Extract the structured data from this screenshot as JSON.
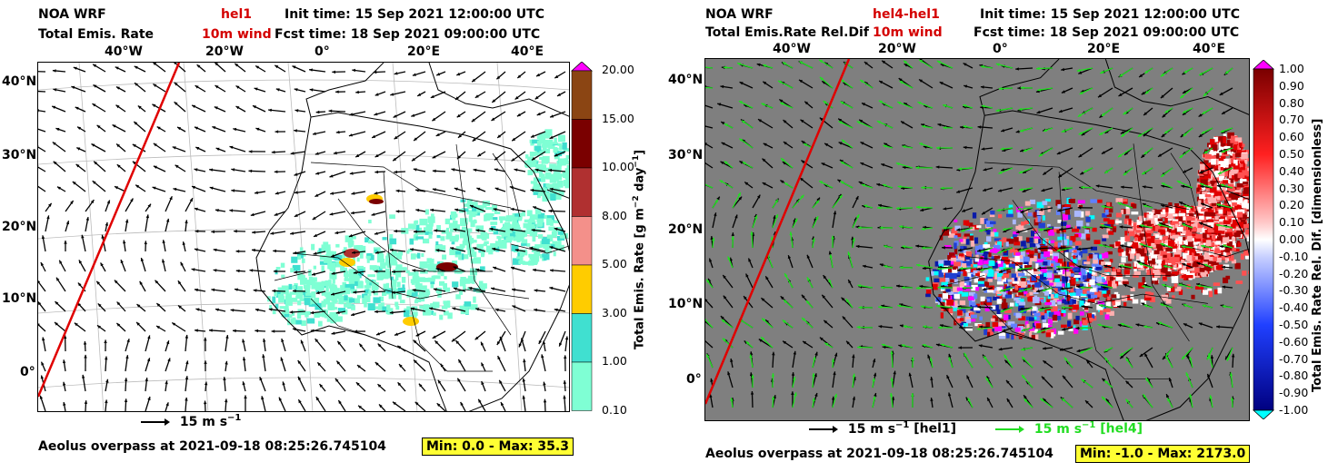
{
  "colors": {
    "overpass": "#e00000",
    "wind_left": "#000000",
    "wind_right": "#22dd22",
    "ocean_right": "#7f7f7f",
    "badge": "#ffff33"
  },
  "left": {
    "model": "NOA WRF",
    "variable": "Total Emis. Rate",
    "experiment": "hel1",
    "field": "10m wind",
    "init_time": "Init time: 15 Sep 2021 12:00:00 UTC",
    "fcst_time": "Fcst time: 18 Sep 2021 09:00:00 UTC",
    "lon_ticks": [
      "40°W",
      "20°W",
      "0°",
      "20°E",
      "40°E"
    ],
    "lat_ticks": [
      "40°N",
      "30°N",
      "20°N",
      "10°N",
      "0°"
    ],
    "colorbar": {
      "labels": [
        "20.00",
        "15.00",
        "10.00",
        "8.00",
        "5.00",
        "3.00",
        "1.00",
        "0.10"
      ],
      "colors": [
        "#8b4513",
        "#7a0000",
        "#b03030",
        "#f4908a",
        "#ffcc00",
        "#40e0d0",
        "#7fffd4"
      ],
      "title": "Total Emis. Rate  [g m",
      "title_sup1": "−2",
      "title_mid": " day",
      "title_sup2": "−1",
      "title_end": "]"
    },
    "wind_legend": "15 m s",
    "wind_legend_sup": "−1",
    "overpass": "Aeolus overpass at 2021-09-18 08:25:26.745104",
    "minmax": "Min: 0.0 - Max: 35.3"
  },
  "right": {
    "model": "NOA WRF",
    "variable": "Total Emis.Rate Rel.Dif",
    "experiment": "hel4-hel1",
    "field": "10m wind",
    "init_time": "Init time: 15 Sep 2021 12:00:00 UTC",
    "fcst_time": "Fcst time: 18 Sep 2021 09:00:00 UTC",
    "lon_ticks": [
      "40°W",
      "20°W",
      "0°",
      "20°E",
      "40°E"
    ],
    "lat_ticks": [
      "40°N",
      "30°N",
      "20°N",
      "10°N",
      "0°"
    ],
    "colorbar": {
      "labels": [
        "1.00",
        "0.90",
        "0.80",
        "0.70",
        "0.60",
        "0.50",
        "0.40",
        "0.30",
        "0.20",
        "0.10",
        "0.00",
        "-0.10",
        "-0.20",
        "-0.30",
        "-0.40",
        "-0.50",
        "-0.60",
        "-0.70",
        "-0.80",
        "-0.90",
        "-1.00"
      ],
      "title": "Total Emis. Rate Rel. Dif.  [dimensionless]"
    },
    "wind_legend_1": "15 m s",
    "wind_legend_1_sup": "−1",
    "wind_legend_1_tag": " [hel1]",
    "wind_legend_2": "15 m s",
    "wind_legend_2_sup": "−1",
    "wind_legend_2_tag": " [hel4]",
    "overpass": "Aeolus overpass at 2021-09-18 08:25:26.745104",
    "minmax": "Min: -1.0 - Max: 2173.0"
  }
}
